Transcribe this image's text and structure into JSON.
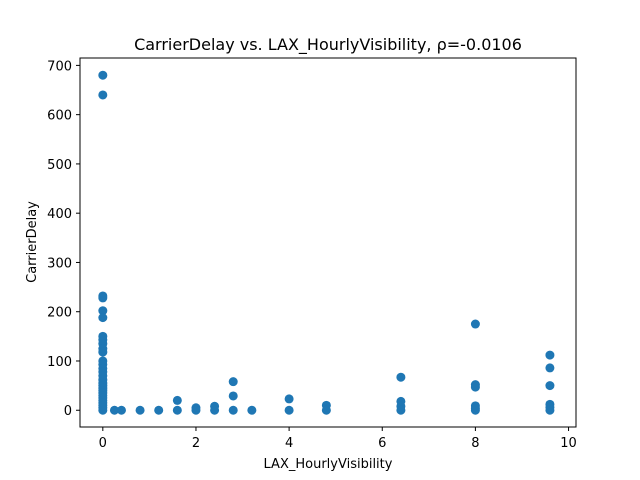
{
  "chart_data": {
    "type": "scatter",
    "title": "CarrierDelay vs. LAX_HourlyVisibility, ρ=-0.0106",
    "xlabel": "LAX_HourlyVisibility",
    "ylabel": "CarrierDelay",
    "xlim": [
      -0.49,
      10.16
    ],
    "ylim": [
      -34,
      715
    ],
    "xticks": [
      0,
      2,
      4,
      6,
      8,
      10
    ],
    "yticks": [
      0,
      100,
      200,
      300,
      400,
      500,
      600,
      700
    ],
    "grid": false,
    "legend": "none",
    "color": "#1f77b4",
    "points": [
      [
        0,
        680
      ],
      [
        0,
        640
      ],
      [
        0,
        232
      ],
      [
        0,
        228
      ],
      [
        0,
        202
      ],
      [
        0,
        188
      ],
      [
        0,
        150
      ],
      [
        0,
        143
      ],
      [
        0,
        135
      ],
      [
        0,
        125
      ],
      [
        0,
        118
      ],
      [
        0,
        100
      ],
      [
        0,
        93
      ],
      [
        0,
        85
      ],
      [
        0,
        78
      ],
      [
        0,
        70
      ],
      [
        0,
        62
      ],
      [
        0,
        55
      ],
      [
        0,
        50
      ],
      [
        0,
        45
      ],
      [
        0,
        40
      ],
      [
        0,
        35
      ],
      [
        0,
        30
      ],
      [
        0,
        25
      ],
      [
        0,
        20
      ],
      [
        0,
        15
      ],
      [
        0,
        10
      ],
      [
        0,
        5
      ],
      [
        0,
        0
      ],
      [
        0.25,
        0
      ],
      [
        0.4,
        0
      ],
      [
        0.8,
        0
      ],
      [
        1.2,
        0
      ],
      [
        1.6,
        20
      ],
      [
        1.6,
        0
      ],
      [
        2.0,
        5
      ],
      [
        2.0,
        0
      ],
      [
        2.4,
        8
      ],
      [
        2.4,
        0
      ],
      [
        2.8,
        58
      ],
      [
        2.8,
        29
      ],
      [
        2.8,
        0
      ],
      [
        3.2,
        0
      ],
      [
        4.0,
        23
      ],
      [
        4.0,
        0
      ],
      [
        4.8,
        10
      ],
      [
        4.8,
        0
      ],
      [
        6.4,
        67
      ],
      [
        6.4,
        18
      ],
      [
        6.4,
        8
      ],
      [
        6.4,
        0
      ],
      [
        8.0,
        175
      ],
      [
        8.0,
        52
      ],
      [
        8.0,
        47
      ],
      [
        8.0,
        9
      ],
      [
        8.0,
        4
      ],
      [
        8.0,
        0
      ],
      [
        9.6,
        112
      ],
      [
        9.6,
        86
      ],
      [
        9.6,
        50
      ],
      [
        9.6,
        12
      ],
      [
        9.6,
        6
      ],
      [
        9.6,
        0
      ]
    ]
  }
}
